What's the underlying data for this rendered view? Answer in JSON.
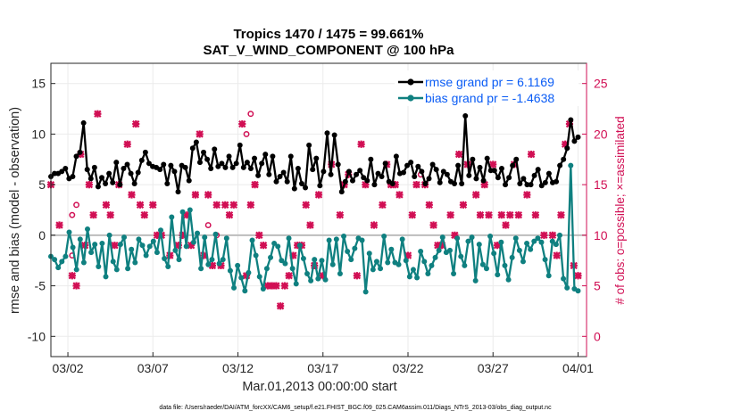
{
  "chart_data": {
    "type": "line",
    "title_line1": "Tropics 1470 / 1475 = 99.661%",
    "title_line2": "SAT_V_WIND_COMPONENT @ 100 hPa",
    "xlabel": "Mar.01,2013 00:00:00 start",
    "ylabel": "rmse and bias (model - observation)",
    "ylabel_right": "# of obs: o=possible; ×=assimilated",
    "footnote": "data file: /Users/raeder/DAI/ATM_forcXX/CAM6_setup/f.e21.FHIST_BGC.f09_025.CAM6assim.011/Diags_NTrS_2013-03/obs_diag_output.nc",
    "xlim": [
      0,
      31.5
    ],
    "ylim": [
      -12,
      17
    ],
    "ylim_right": [
      -2,
      27
    ],
    "x_ticks": [
      1,
      6,
      11,
      16,
      21,
      26,
      31
    ],
    "x_tick_labels": [
      "03/02",
      "03/07",
      "03/12",
      "03/17",
      "03/22",
      "03/27",
      "04/01"
    ],
    "y_ticks": [
      -10,
      -5,
      0,
      5,
      10,
      15
    ],
    "y_tick_labels": [
      "-10",
      "-5",
      "0",
      "5",
      "10",
      "15"
    ],
    "y_right_ticks": [
      0,
      5,
      10,
      15,
      20,
      25
    ],
    "y_right_tick_labels": [
      "0",
      "5",
      "10",
      "15",
      "20",
      "25"
    ],
    "grid": true,
    "legend_location": "top-right",
    "colors": {
      "rmse": "#000000",
      "bias": "#0f8080",
      "obs": "#d10f54",
      "zero_line": "#bdbdbd",
      "grid": "#ebebeb",
      "legend_text": "#0a5cf5"
    },
    "series": [
      {
        "name": "rmse grand pr = 6.1169",
        "axis": "left",
        "values": [
          5.8,
          6.1,
          6.1,
          6.3,
          6.6,
          5.6,
          5.8,
          7.8,
          8.2,
          11.1,
          6.5,
          5.6,
          6.7,
          4.8,
          5.7,
          5.1,
          6.1,
          5.2,
          7.2,
          5.0,
          6.6,
          7.0,
          6.1,
          5.1,
          6.2,
          7.4,
          8.2,
          7.1,
          6.8,
          6.7,
          6.5,
          7.0,
          5.1,
          6.9,
          6.3,
          4.3,
          6.9,
          6.7,
          5.4,
          8.6,
          9.2,
          7.2,
          8.2,
          7.5,
          6.6,
          8.5,
          6.8,
          7.1,
          6.7,
          7.8,
          6.7,
          7.1,
          8.9,
          6.7,
          7.2,
          6.6,
          7.6,
          5.9,
          7.1,
          8.0,
          6.0,
          7.8,
          5.3,
          5.8,
          6.2,
          5.3,
          7.8,
          4.6,
          6.6,
          5.1,
          4.7,
          8.9,
          6.5,
          7.6,
          4.9,
          6.3,
          10.1,
          6.0,
          9.9,
          7.0,
          4.3,
          5.3,
          6.3,
          5.4,
          6.0,
          6.4,
          5.7,
          5.4,
          7.5,
          5.0,
          6.1,
          5.8,
          7.1,
          5.3,
          5.1,
          7.8,
          6.1,
          6.2,
          6.9,
          7.2,
          5.8,
          6.8,
          6.3,
          5.1,
          5.6,
          7.0,
          6.5,
          5.2,
          6.3,
          6.0,
          5.3,
          5.1,
          6.9,
          5.1,
          11.8,
          5.9,
          7.5,
          5.6,
          6.7,
          5.4,
          7.6,
          6.4,
          6.4,
          5.7,
          6.6,
          5.0,
          5.7,
          6.9,
          7.5,
          5.1,
          5.6,
          5.0,
          5.0,
          5.9,
          6.5,
          4.9,
          5.2,
          6.1,
          5.2,
          5.3,
          6.9,
          7.5,
          8.6,
          11.4,
          9.3,
          9.7
        ]
      },
      {
        "name": "bias grand pr = -1.4638",
        "axis": "left",
        "values": [
          -2.1,
          -2.4,
          -3.2,
          -2.6,
          -2.1,
          0.3,
          -1.2,
          -3.4,
          -0.4,
          -2.7,
          0.6,
          -1.7,
          -0.9,
          -3.1,
          -0.8,
          -4.1,
          0.0,
          -2.6,
          -3.4,
          -0.9,
          -0.2,
          -3.3,
          -1.4,
          -2.7,
          -0.4,
          -1.0,
          -2.0,
          -1.1,
          -0.6,
          -1.7,
          0.5,
          -2.3,
          -3.1,
          1.8,
          -1.5,
          -2.4,
          2.3,
          -1.1,
          2.5,
          -0.7,
          0.2,
          -3.3,
          -0.2,
          -2.9,
          -2.4,
          0.1,
          -2.8,
          -2.4,
          -0.3,
          -3.5,
          -5.2,
          -3.0,
          -4.2,
          -5.5,
          -3.7,
          -0.5,
          -2.0,
          -4.1,
          -5.3,
          -3.3,
          -2.2,
          -0.8,
          -1.1,
          -2.5,
          -2.8,
          -0.3,
          -3.3,
          -4.8,
          -1.0,
          -2.3,
          -3.8,
          -4.5,
          -2.4,
          -4.3,
          -2.5,
          -4.4,
          -0.5,
          -2.9,
          -0.4,
          -3.8,
          -0.1,
          -1.6,
          -2.4,
          -1.3,
          -0.3,
          -0.5,
          -5.6,
          -1.8,
          -3.4,
          -2.6,
          -3.3,
          -0.1,
          -2.7,
          -1.4,
          -2.7,
          -2.9,
          -0.4,
          -2.5,
          -4.1,
          -3.4,
          -4.2,
          -1.6,
          -2.6,
          -3.8,
          -3.0,
          -2.2,
          -1.5,
          -0.2,
          -1.7,
          -1.5,
          -3.8,
          -0.3,
          -2.1,
          -3.0,
          -0.6,
          -0.2,
          -4.5,
          -0.9,
          -2.9,
          -3.3,
          -0.1,
          -1.8,
          -3.9,
          -0.7,
          -3.0,
          -4.4,
          -2.2,
          -0.3,
          -1.5,
          -2.6,
          -0.8,
          -1.4,
          -0.6,
          -0.3,
          -0.7,
          -2.4,
          -4.0,
          -0.6,
          -0.9,
          0.0,
          -4.3,
          -5.2,
          6.9,
          -5.3,
          -5.5
        ]
      }
    ],
    "obs_assimilated": {
      "axis": "right",
      "marker": "x",
      "x": [
        0.0,
        0.5,
        1.25,
        1.5,
        1.75,
        2.0,
        2.25,
        2.5,
        2.75,
        3.25,
        3.5,
        3.75,
        4.0,
        4.5,
        4.75,
        5.0,
        5.25,
        5.5,
        6.0,
        6.25,
        6.5,
        7.0,
        7.5,
        7.75,
        8.0,
        8.25,
        8.5,
        8.75,
        9.0,
        9.25,
        9.5,
        9.75,
        10.0,
        10.25,
        10.5,
        10.75,
        11.25,
        11.5,
        11.75,
        12.0,
        12.25,
        12.5,
        12.75,
        13.0,
        13.25,
        13.5,
        13.75,
        14.0,
        14.25,
        14.5,
        14.75,
        15.0,
        15.25,
        15.5,
        15.75,
        16.0,
        16.5,
        17.0,
        17.25,
        17.5,
        18.0,
        18.25,
        18.5,
        19.0,
        19.5,
        19.75,
        20.0,
        20.25,
        20.5,
        21.0,
        21.25,
        21.5,
        22.0,
        22.25,
        22.5,
        22.75,
        23.0,
        23.5,
        23.75,
        24.0,
        24.25,
        24.5,
        25.0,
        25.25,
        25.5,
        25.75,
        26.0,
        26.25,
        26.5,
        26.75,
        27.0,
        27.25,
        27.5,
        28.0,
        28.25,
        28.5,
        29.0,
        29.5,
        29.75,
        30.0,
        30.25,
        30.5,
        30.75,
        31.0
      ],
      "y": [
        15,
        11,
        6,
        5,
        18,
        9,
        15,
        12,
        22,
        13,
        12,
        9,
        15,
        19,
        14,
        21,
        13,
        12,
        13,
        10,
        10,
        8,
        9,
        10,
        12,
        9,
        14,
        20,
        8,
        14,
        7,
        13,
        7,
        13,
        12,
        13,
        21,
        6,
        13,
        15,
        10,
        9,
        5,
        5,
        5,
        3,
        5,
        6,
        8,
        9,
        9,
        13,
        11,
        7,
        14,
        6,
        17,
        12,
        15,
        16,
        6,
        19,
        15,
        11,
        13,
        17,
        15,
        15,
        14,
        8,
        12,
        15,
        15,
        13,
        11,
        9,
        9,
        12,
        10,
        18,
        13,
        17,
        14,
        12,
        15,
        12,
        17,
        9,
        12,
        11,
        12,
        17,
        12,
        14,
        18,
        12,
        10,
        10,
        8,
        12,
        19,
        21,
        7,
        6
      ]
    },
    "obs_possible": {
      "axis": "right",
      "marker": "o",
      "x": [
        1.25,
        1.25,
        1.5,
        9.25,
        9.75,
        11.5,
        11.75,
        21.75
      ],
      "y": [
        8,
        12,
        13,
        11,
        10,
        20,
        22,
        16
      ]
    }
  }
}
